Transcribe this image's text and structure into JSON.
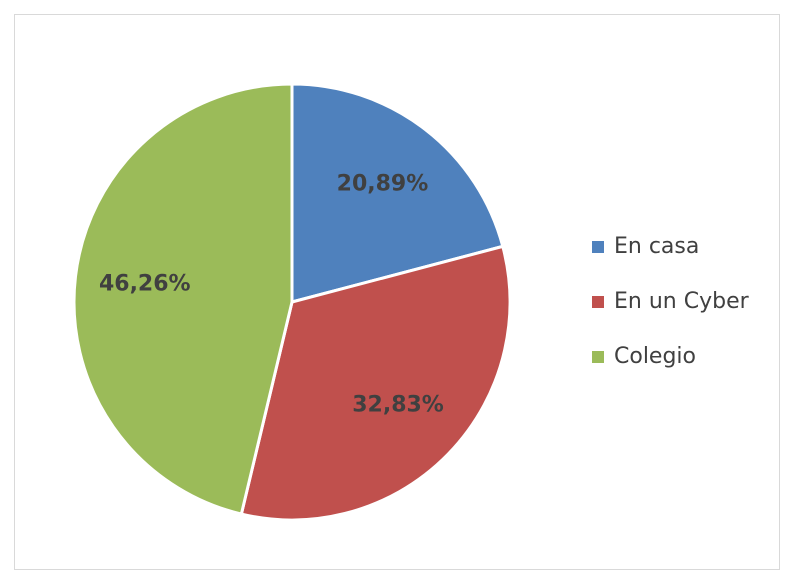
{
  "chart_data": {
    "type": "pie",
    "categories": [
      "En casa",
      "En un Cyber",
      "Colegio"
    ],
    "values": [
      20.89,
      32.83,
      46.26
    ],
    "value_labels": [
      "20,89%",
      "32,83%",
      "46,26%"
    ],
    "colors": [
      "#4f81bd",
      "#c0504d",
      "#9bbb59"
    ],
    "legend": "right"
  }
}
